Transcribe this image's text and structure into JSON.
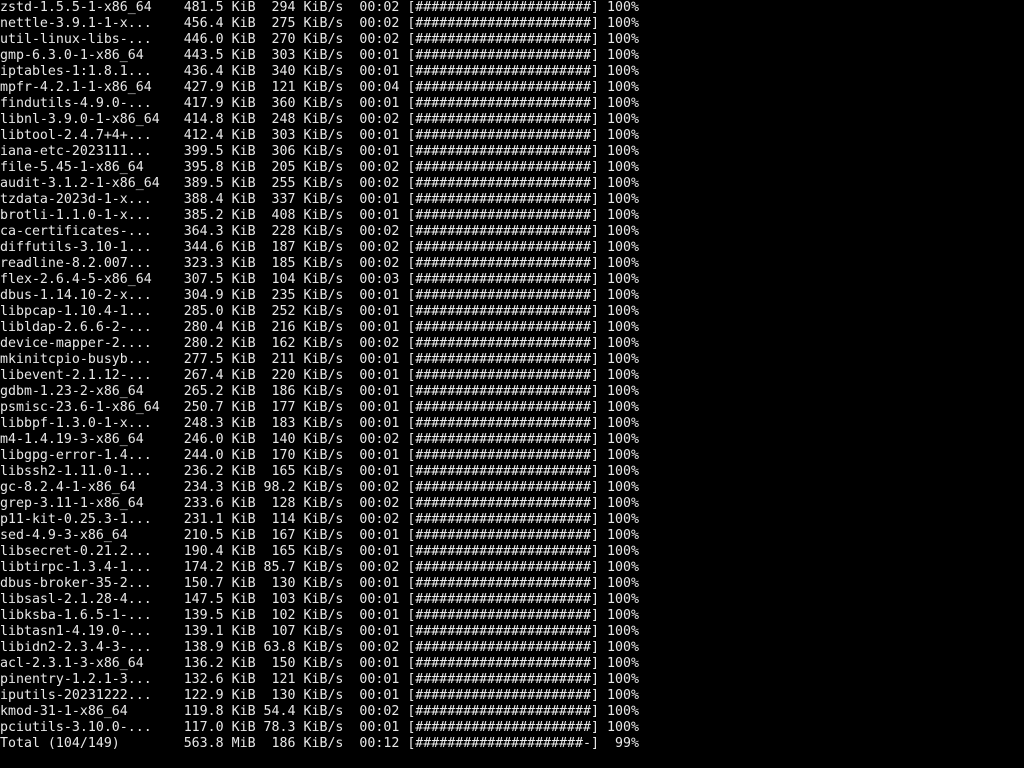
{
  "terminal": {
    "colors": {
      "background": "#000000",
      "foreground": "#e8e8e8"
    },
    "rows": [
      {
        "name": "zstd-1.5.5-1-x86_64",
        "size": "481.5 KiB",
        "rate": "294 KiB/s",
        "time": "00:02",
        "bar": "######################",
        "pct": "100%"
      },
      {
        "name": "nettle-3.9.1-1-x...",
        "size": "456.4 KiB",
        "rate": "275 KiB/s",
        "time": "00:02",
        "bar": "######################",
        "pct": "100%"
      },
      {
        "name": "util-linux-libs-...",
        "size": "446.0 KiB",
        "rate": "270 KiB/s",
        "time": "00:02",
        "bar": "######################",
        "pct": "100%"
      },
      {
        "name": "gmp-6.3.0-1-x86_64",
        "size": "443.5 KiB",
        "rate": "303 KiB/s",
        "time": "00:01",
        "bar": "######################",
        "pct": "100%"
      },
      {
        "name": "iptables-1:1.8.1...",
        "size": "436.4 KiB",
        "rate": "340 KiB/s",
        "time": "00:01",
        "bar": "######################",
        "pct": "100%"
      },
      {
        "name": "mpfr-4.2.1-1-x86_64",
        "size": "427.9 KiB",
        "rate": "121 KiB/s",
        "time": "00:04",
        "bar": "######################",
        "pct": "100%"
      },
      {
        "name": "findutils-4.9.0-...",
        "size": "417.9 KiB",
        "rate": "360 KiB/s",
        "time": "00:01",
        "bar": "######################",
        "pct": "100%"
      },
      {
        "name": "libnl-3.9.0-1-x86_64",
        "size": "414.8 KiB",
        "rate": "248 KiB/s",
        "time": "00:02",
        "bar": "######################",
        "pct": "100%"
      },
      {
        "name": "libtool-2.4.7+4+...",
        "size": "412.4 KiB",
        "rate": "303 KiB/s",
        "time": "00:01",
        "bar": "######################",
        "pct": "100%"
      },
      {
        "name": "iana-etc-2023111...",
        "size": "399.5 KiB",
        "rate": "306 KiB/s",
        "time": "00:01",
        "bar": "######################",
        "pct": "100%"
      },
      {
        "name": "file-5.45-1-x86_64",
        "size": "395.8 KiB",
        "rate": "205 KiB/s",
        "time": "00:02",
        "bar": "######################",
        "pct": "100%"
      },
      {
        "name": "audit-3.1.2-1-x86_64",
        "size": "389.5 KiB",
        "rate": "255 KiB/s",
        "time": "00:02",
        "bar": "######################",
        "pct": "100%"
      },
      {
        "name": "tzdata-2023d-1-x...",
        "size": "388.4 KiB",
        "rate": "337 KiB/s",
        "time": "00:01",
        "bar": "######################",
        "pct": "100%"
      },
      {
        "name": "brotli-1.1.0-1-x...",
        "size": "385.2 KiB",
        "rate": "408 KiB/s",
        "time": "00:01",
        "bar": "######################",
        "pct": "100%"
      },
      {
        "name": "ca-certificates-...",
        "size": "364.3 KiB",
        "rate": "228 KiB/s",
        "time": "00:02",
        "bar": "######################",
        "pct": "100%"
      },
      {
        "name": "diffutils-3.10-1...",
        "size": "344.6 KiB",
        "rate": "187 KiB/s",
        "time": "00:02",
        "bar": "######################",
        "pct": "100%"
      },
      {
        "name": "readline-8.2.007...",
        "size": "323.3 KiB",
        "rate": "185 KiB/s",
        "time": "00:02",
        "bar": "######################",
        "pct": "100%"
      },
      {
        "name": "flex-2.6.4-5-x86_64",
        "size": "307.5 KiB",
        "rate": "104 KiB/s",
        "time": "00:03",
        "bar": "######################",
        "pct": "100%"
      },
      {
        "name": "dbus-1.14.10-2-x...",
        "size": "304.9 KiB",
        "rate": "235 KiB/s",
        "time": "00:01",
        "bar": "######################",
        "pct": "100%"
      },
      {
        "name": "libpcap-1.10.4-1...",
        "size": "285.0 KiB",
        "rate": "252 KiB/s",
        "time": "00:01",
        "bar": "######################",
        "pct": "100%"
      },
      {
        "name": "libldap-2.6.6-2-...",
        "size": "280.4 KiB",
        "rate": "216 KiB/s",
        "time": "00:01",
        "bar": "######################",
        "pct": "100%"
      },
      {
        "name": "device-mapper-2....",
        "size": "280.2 KiB",
        "rate": "162 KiB/s",
        "time": "00:02",
        "bar": "######################",
        "pct": "100%"
      },
      {
        "name": "mkinitcpio-busyb...",
        "size": "277.5 KiB",
        "rate": "211 KiB/s",
        "time": "00:01",
        "bar": "######################",
        "pct": "100%"
      },
      {
        "name": "libevent-2.1.12-...",
        "size": "267.4 KiB",
        "rate": "220 KiB/s",
        "time": "00:01",
        "bar": "######################",
        "pct": "100%"
      },
      {
        "name": "gdbm-1.23-2-x86_64",
        "size": "265.2 KiB",
        "rate": "186 KiB/s",
        "time": "00:01",
        "bar": "######################",
        "pct": "100%"
      },
      {
        "name": "psmisc-23.6-1-x86_64",
        "size": "250.7 KiB",
        "rate": "177 KiB/s",
        "time": "00:01",
        "bar": "######################",
        "pct": "100%"
      },
      {
        "name": "libbpf-1.3.0-1-x...",
        "size": "248.3 KiB",
        "rate": "183 KiB/s",
        "time": "00:01",
        "bar": "######################",
        "pct": "100%"
      },
      {
        "name": "m4-1.4.19-3-x86_64",
        "size": "246.0 KiB",
        "rate": "140 KiB/s",
        "time": "00:02",
        "bar": "######################",
        "pct": "100%"
      },
      {
        "name": "libgpg-error-1.4...",
        "size": "244.0 KiB",
        "rate": "170 KiB/s",
        "time": "00:01",
        "bar": "######################",
        "pct": "100%"
      },
      {
        "name": "libssh2-1.11.0-1...",
        "size": "236.2 KiB",
        "rate": "165 KiB/s",
        "time": "00:01",
        "bar": "######################",
        "pct": "100%"
      },
      {
        "name": "gc-8.2.4-1-x86_64",
        "size": "234.3 KiB",
        "rate": "98.2 KiB/s",
        "time": "00:02",
        "bar": "######################",
        "pct": "100%"
      },
      {
        "name": "grep-3.11-1-x86_64",
        "size": "233.6 KiB",
        "rate": "128 KiB/s",
        "time": "00:02",
        "bar": "######################",
        "pct": "100%"
      },
      {
        "name": "p11-kit-0.25.3-1...",
        "size": "231.1 KiB",
        "rate": "114 KiB/s",
        "time": "00:02",
        "bar": "######################",
        "pct": "100%"
      },
      {
        "name": "sed-4.9-3-x86_64",
        "size": "210.5 KiB",
        "rate": "167 KiB/s",
        "time": "00:01",
        "bar": "######################",
        "pct": "100%"
      },
      {
        "name": "libsecret-0.21.2...",
        "size": "190.4 KiB",
        "rate": "165 KiB/s",
        "time": "00:01",
        "bar": "######################",
        "pct": "100%"
      },
      {
        "name": "libtirpc-1.3.4-1...",
        "size": "174.2 KiB",
        "rate": "85.7 KiB/s",
        "time": "00:02",
        "bar": "######################",
        "pct": "100%"
      },
      {
        "name": "dbus-broker-35-2...",
        "size": "150.7 KiB",
        "rate": "130 KiB/s",
        "time": "00:01",
        "bar": "######################",
        "pct": "100%"
      },
      {
        "name": "libsasl-2.1.28-4...",
        "size": "147.5 KiB",
        "rate": "103 KiB/s",
        "time": "00:01",
        "bar": "######################",
        "pct": "100%"
      },
      {
        "name": "libksba-1.6.5-1-...",
        "size": "139.5 KiB",
        "rate": "102 KiB/s",
        "time": "00:01",
        "bar": "######################",
        "pct": "100%"
      },
      {
        "name": "libtasn1-4.19.0-...",
        "size": "139.1 KiB",
        "rate": "107 KiB/s",
        "time": "00:01",
        "bar": "######################",
        "pct": "100%"
      },
      {
        "name": "libidn2-2.3.4-3-...",
        "size": "138.9 KiB",
        "rate": "63.8 KiB/s",
        "time": "00:02",
        "bar": "######################",
        "pct": "100%"
      },
      {
        "name": "acl-2.3.1-3-x86_64",
        "size": "136.2 KiB",
        "rate": "150 KiB/s",
        "time": "00:01",
        "bar": "######################",
        "pct": "100%"
      },
      {
        "name": "pinentry-1.2.1-3...",
        "size": "132.6 KiB",
        "rate": "121 KiB/s",
        "time": "00:01",
        "bar": "######################",
        "pct": "100%"
      },
      {
        "name": "iputils-20231222...",
        "size": "122.9 KiB",
        "rate": "130 KiB/s",
        "time": "00:01",
        "bar": "######################",
        "pct": "100%"
      },
      {
        "name": "kmod-31-1-x86_64",
        "size": "119.8 KiB",
        "rate": "54.4 KiB/s",
        "time": "00:02",
        "bar": "######################",
        "pct": "100%"
      },
      {
        "name": "pciutils-3.10.0-...",
        "size": "117.0 KiB",
        "rate": "78.3 KiB/s",
        "time": "00:01",
        "bar": "######################",
        "pct": "100%"
      },
      {
        "name": "Total (104/149)",
        "size": "563.8 MiB",
        "rate": "186 KiB/s",
        "time": "00:12",
        "bar": "#####################-",
        "pct": "99%",
        "kind": "total"
      }
    ]
  }
}
